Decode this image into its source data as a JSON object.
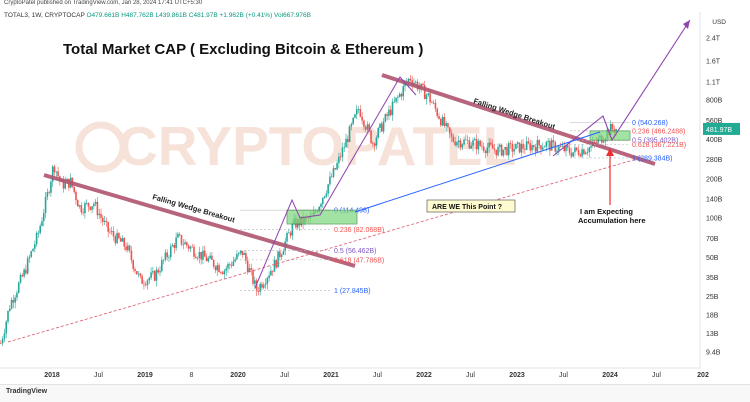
{
  "header": {
    "published": "CryptoPatel published on TradingView.com, Jan 28, 2024 17:41 UTC+5:30",
    "symbol": "TOTAL3, 1W, CRYPTOCAP",
    "ohlc": "O479.661B H487.762B L439.861B C481.97B +1.962B (+0.41%) Vol667.976B",
    "currency": "USD"
  },
  "watermark": "CRYPTOPATEL",
  "footer": {
    "brand": "TradingView"
  },
  "chart_data": {
    "type": "candlestick",
    "title": "Total Market CAP ( Excluding Bitcoin & Ethereum )",
    "y_scale": "log",
    "y_ticks": [
      "2.4T",
      "1.6T",
      "1.1T",
      "800B",
      "560B",
      "400B",
      "280B",
      "200B",
      "140B",
      "100B",
      "70B",
      "50B",
      "35B",
      "25B",
      "18B",
      "13B",
      "9.4B"
    ],
    "x_ticks": [
      "2018",
      "Jul",
      "2019",
      "8",
      "2020",
      "Jul",
      "2021",
      "Jul",
      "2022",
      "Jul",
      "2023",
      "Jul",
      "2024",
      "Jul",
      "202"
    ],
    "last_price_label": "481.97B",
    "price_path_points": [
      {
        "x": 2017.45,
        "y": 11
      },
      {
        "x": 2017.55,
        "y": 22
      },
      {
        "x": 2017.7,
        "y": 38
      },
      {
        "x": 2017.85,
        "y": 75
      },
      {
        "x": 2017.95,
        "y": 150
      },
      {
        "x": 2018.02,
        "y": 260
      },
      {
        "x": 2018.1,
        "y": 180
      },
      {
        "x": 2018.2,
        "y": 190
      },
      {
        "x": 2018.3,
        "y": 120
      },
      {
        "x": 2018.45,
        "y": 130
      },
      {
        "x": 2018.6,
        "y": 80
      },
      {
        "x": 2018.8,
        "y": 60
      },
      {
        "x": 2018.95,
        "y": 33
      },
      {
        "x": 2019.1,
        "y": 36
      },
      {
        "x": 2019.35,
        "y": 70
      },
      {
        "x": 2019.6,
        "y": 52
      },
      {
        "x": 2019.85,
        "y": 40
      },
      {
        "x": 2020.05,
        "y": 55
      },
      {
        "x": 2020.2,
        "y": 28
      },
      {
        "x": 2020.4,
        "y": 45
      },
      {
        "x": 2020.6,
        "y": 90
      },
      {
        "x": 2020.8,
        "y": 100
      },
      {
        "x": 2021.05,
        "y": 240
      },
      {
        "x": 2021.3,
        "y": 700
      },
      {
        "x": 2021.45,
        "y": 380
      },
      {
        "x": 2021.6,
        "y": 600
      },
      {
        "x": 2021.85,
        "y": 1200
      },
      {
        "x": 2022.05,
        "y": 850
      },
      {
        "x": 2022.3,
        "y": 400
      },
      {
        "x": 2022.5,
        "y": 380
      },
      {
        "x": 2022.8,
        "y": 330
      },
      {
        "x": 2023.05,
        "y": 350
      },
      {
        "x": 2023.3,
        "y": 370
      },
      {
        "x": 2023.6,
        "y": 320
      },
      {
        "x": 2023.8,
        "y": 350
      },
      {
        "x": 2024.0,
        "y": 480
      },
      {
        "x": 2024.07,
        "y": 482
      }
    ],
    "annotations": {
      "wedge_label": "Falling Wedge Breakout",
      "question_label": "ARE WE This Point ?",
      "expect_label_1": "I am Expecting",
      "expect_label_2": "Accumulation here",
      "fib_2020": [
        "0 (114.498)",
        "0.236 (82.068B)",
        "0.5 (56.462B)",
        "0.618 (47.786B)",
        "1 (27.845B)"
      ],
      "fib_2024": [
        "0 (540.268)",
        "0.236 (466.2488)",
        "0.5 (395.402B)",
        "0.618 (367.221B)",
        "1 (289.384B)"
      ]
    }
  }
}
